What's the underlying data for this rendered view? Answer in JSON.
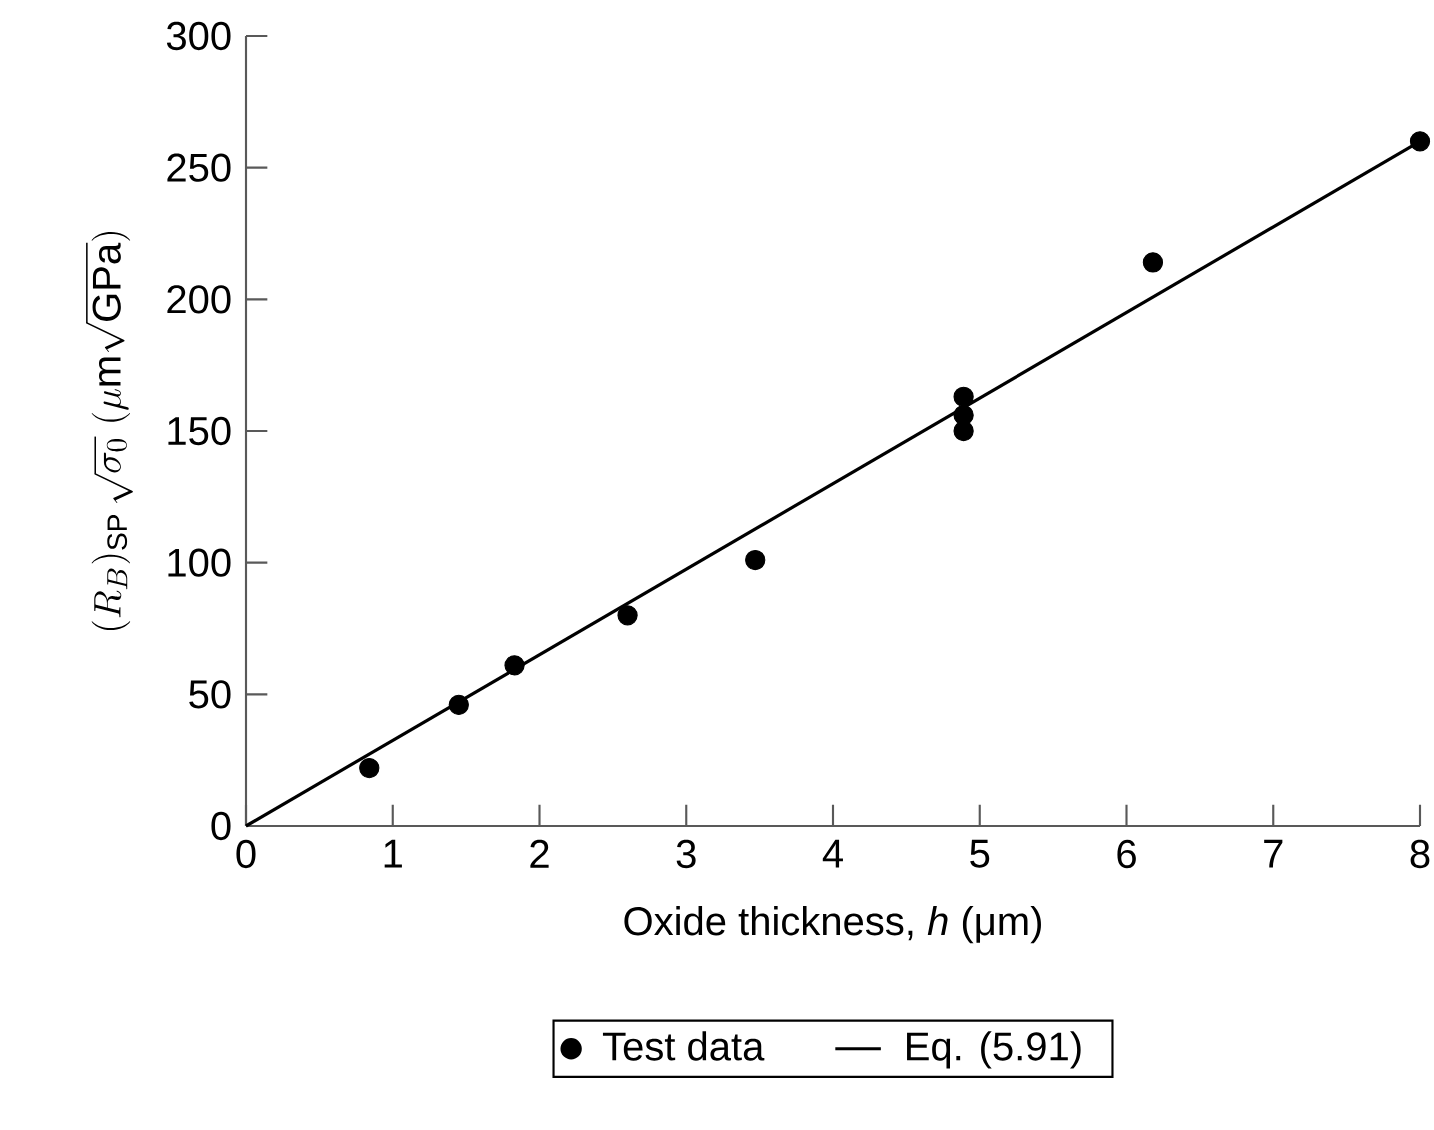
{
  "chart_data": {
    "type": "scatter",
    "xlabel": "Oxide thickness, *h* (μm)",
    "ylabel": "(R_B)_{\\mathrm{SP}}\\,\\sqrt{\\sigma_0}\\ (\\mu\\mathrm{m}\\sqrt{\\mathrm{GPa}})",
    "xlim": [
      0,
      8
    ],
    "ylim": [
      0,
      300
    ],
    "xticks": [
      0,
      1,
      2,
      3,
      4,
      5,
      6,
      7,
      8
    ],
    "yticks": [
      0,
      50,
      100,
      150,
      200,
      250,
      300
    ],
    "legend": "bottom",
    "grid": false,
    "series": [
      {
        "name": "Test data",
        "type": "scatter",
        "color": "#000000",
        "x": [
          0.84,
          1.45,
          1.83,
          2.6,
          3.47,
          4.89,
          4.89,
          4.89,
          6.18,
          8.0
        ],
        "values": [
          22,
          46,
          61,
          80,
          101,
          163,
          156,
          150,
          214,
          260
        ]
      },
      {
        "name": "Eq. (5.91)",
        "type": "line",
        "line_style": "solid",
        "color": "#000000",
        "x": [
          0,
          8
        ],
        "values": [
          0,
          260
        ]
      }
    ]
  }
}
